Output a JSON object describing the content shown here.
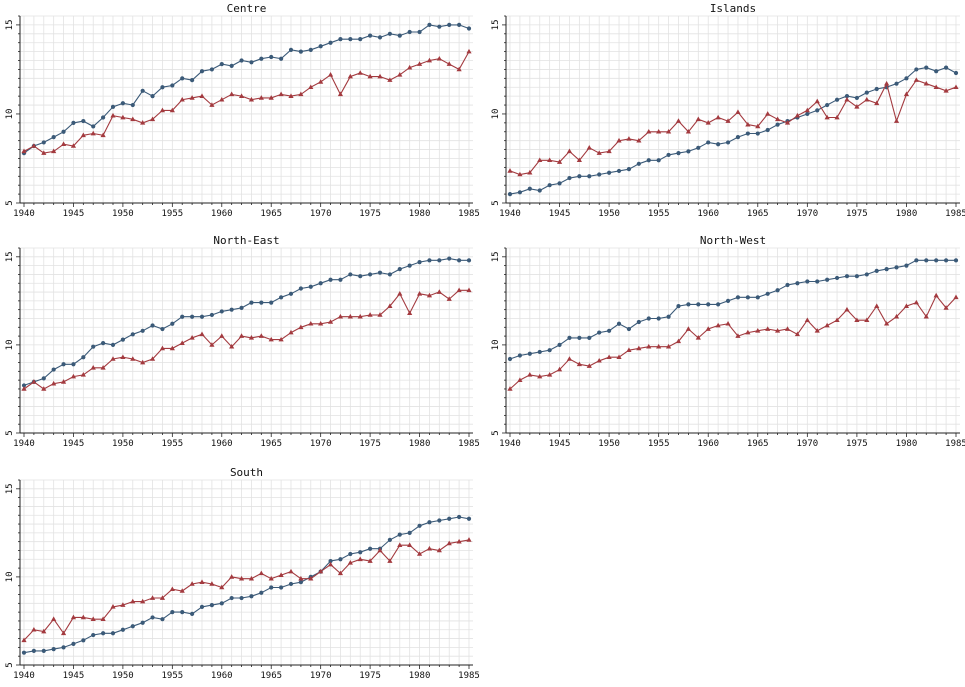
{
  "chart_data": [
    {
      "type": "line",
      "title": "Centre",
      "x": [
        1940,
        1941,
        1942,
        1943,
        1944,
        1945,
        1946,
        1947,
        1948,
        1949,
        1950,
        1951,
        1952,
        1953,
        1954,
        1955,
        1956,
        1957,
        1958,
        1959,
        1960,
        1961,
        1962,
        1963,
        1964,
        1965,
        1966,
        1967,
        1968,
        1969,
        1970,
        1971,
        1972,
        1973,
        1974,
        1975,
        1976,
        1977,
        1978,
        1979,
        1980,
        1981,
        1982,
        1983,
        1984,
        1985
      ],
      "series": [
        {
          "color": "#3b5a78",
          "marker": "circle",
          "values": [
            7.8,
            8.2,
            8.4,
            8.7,
            9.0,
            9.5,
            9.6,
            9.3,
            9.8,
            10.4,
            10.6,
            10.5,
            11.3,
            11.0,
            11.5,
            11.6,
            12.0,
            11.9,
            12.4,
            12.5,
            12.8,
            12.7,
            13.0,
            12.9,
            13.1,
            13.2,
            13.1,
            13.6,
            13.5,
            13.6,
            13.8,
            14.0,
            14.2,
            14.2,
            14.2,
            14.4,
            14.3,
            14.5,
            14.4,
            14.6,
            14.6,
            15.0,
            14.9,
            15.0,
            15.0,
            14.8
          ]
        },
        {
          "color": "#a33a3f",
          "marker": "triangle",
          "values": [
            7.9,
            8.2,
            7.8,
            7.9,
            8.3,
            8.2,
            8.8,
            8.9,
            8.8,
            9.9,
            9.8,
            9.7,
            9.5,
            9.7,
            10.2,
            10.2,
            10.8,
            10.9,
            11.0,
            10.5,
            10.8,
            11.1,
            11.0,
            10.8,
            10.9,
            10.9,
            11.1,
            11.0,
            11.1,
            11.5,
            11.8,
            12.2,
            11.1,
            12.1,
            12.3,
            12.1,
            12.1,
            11.9,
            12.2,
            12.6,
            12.8,
            13.0,
            13.1,
            12.8,
            12.5,
            13.5
          ]
        }
      ],
      "xticks": [
        1940,
        1945,
        1950,
        1955,
        1960,
        1965,
        1970,
        1975,
        1980,
        1985
      ],
      "yticks": [
        5,
        10,
        15
      ],
      "xlim": [
        1940,
        1985
      ],
      "ylim": [
        5,
        15.5
      ],
      "grid": true
    },
    {
      "type": "line",
      "title": "Islands",
      "x": [
        1940,
        1941,
        1942,
        1943,
        1944,
        1945,
        1946,
        1947,
        1948,
        1949,
        1950,
        1951,
        1952,
        1953,
        1954,
        1955,
        1956,
        1957,
        1958,
        1959,
        1960,
        1961,
        1962,
        1963,
        1964,
        1965,
        1966,
        1967,
        1968,
        1969,
        1970,
        1971,
        1972,
        1973,
        1974,
        1975,
        1976,
        1977,
        1978,
        1979,
        1980,
        1981,
        1982,
        1983,
        1984,
        1985
      ],
      "series": [
        {
          "color": "#3b5a78",
          "marker": "circle",
          "values": [
            5.5,
            5.6,
            5.8,
            5.7,
            6.0,
            6.1,
            6.4,
            6.5,
            6.5,
            6.6,
            6.7,
            6.8,
            6.9,
            7.2,
            7.4,
            7.4,
            7.7,
            7.8,
            7.9,
            8.1,
            8.4,
            8.3,
            8.4,
            8.7,
            8.9,
            8.9,
            9.1,
            9.4,
            9.6,
            9.8,
            10.0,
            10.2,
            10.5,
            10.8,
            11.0,
            10.9,
            11.2,
            11.4,
            11.5,
            11.7,
            12.0,
            12.5,
            12.6,
            12.4,
            12.6,
            12.3
          ]
        },
        {
          "color": "#a33a3f",
          "marker": "triangle",
          "values": [
            6.8,
            6.6,
            6.7,
            7.4,
            7.4,
            7.3,
            7.9,
            7.4,
            8.1,
            7.8,
            7.9,
            8.5,
            8.6,
            8.5,
            9.0,
            9.0,
            9.0,
            9.6,
            9.0,
            9.7,
            9.5,
            9.8,
            9.6,
            10.1,
            9.4,
            9.3,
            10.0,
            9.7,
            9.5,
            9.9,
            10.2,
            10.7,
            9.8,
            9.8,
            10.8,
            10.4,
            10.8,
            10.6,
            11.7,
            9.6,
            11.1,
            11.9,
            11.7,
            11.5,
            11.3,
            11.5
          ]
        }
      ],
      "xticks": [
        1940,
        1945,
        1950,
        1955,
        1960,
        1965,
        1970,
        1975,
        1980,
        1985
      ],
      "yticks": [
        5,
        10,
        15
      ],
      "xlim": [
        1940,
        1985
      ],
      "ylim": [
        5,
        15.5
      ],
      "grid": true
    },
    {
      "type": "line",
      "title": "North-East",
      "x": [
        1940,
        1941,
        1942,
        1943,
        1944,
        1945,
        1946,
        1947,
        1948,
        1949,
        1950,
        1951,
        1952,
        1953,
        1954,
        1955,
        1956,
        1957,
        1958,
        1959,
        1960,
        1961,
        1962,
        1963,
        1964,
        1965,
        1966,
        1967,
        1968,
        1969,
        1970,
        1971,
        1972,
        1973,
        1974,
        1975,
        1976,
        1977,
        1978,
        1979,
        1980,
        1981,
        1982,
        1983,
        1984,
        1985
      ],
      "series": [
        {
          "color": "#3b5a78",
          "marker": "circle",
          "values": [
            7.7,
            7.9,
            8.1,
            8.6,
            8.9,
            8.9,
            9.3,
            9.9,
            10.1,
            10.0,
            10.3,
            10.6,
            10.8,
            11.1,
            10.9,
            11.2,
            11.6,
            11.6,
            11.6,
            11.7,
            11.9,
            12.0,
            12.1,
            12.4,
            12.4,
            12.4,
            12.7,
            12.9,
            13.2,
            13.3,
            13.5,
            13.7,
            13.7,
            14.0,
            13.9,
            14.0,
            14.1,
            14.0,
            14.3,
            14.5,
            14.7,
            14.8,
            14.8,
            14.9,
            14.8,
            14.8
          ]
        },
        {
          "color": "#a33a3f",
          "marker": "triangle",
          "values": [
            7.5,
            7.9,
            7.5,
            7.8,
            7.9,
            8.2,
            8.3,
            8.7,
            8.7,
            9.2,
            9.3,
            9.2,
            9.0,
            9.2,
            9.8,
            9.8,
            10.1,
            10.4,
            10.6,
            10.0,
            10.5,
            9.9,
            10.5,
            10.4,
            10.5,
            10.3,
            10.3,
            10.7,
            11.0,
            11.2,
            11.2,
            11.3,
            11.6,
            11.6,
            11.6,
            11.7,
            11.7,
            12.2,
            12.9,
            11.8,
            12.9,
            12.8,
            13.0,
            12.6,
            13.1,
            13.1
          ]
        }
      ],
      "xticks": [
        1940,
        1945,
        1950,
        1955,
        1960,
        1965,
        1970,
        1975,
        1980,
        1985
      ],
      "yticks": [
        5,
        10,
        15
      ],
      "xlim": [
        1940,
        1985
      ],
      "ylim": [
        5,
        15.5
      ],
      "grid": true
    },
    {
      "type": "line",
      "title": "North-West",
      "x": [
        1940,
        1941,
        1942,
        1943,
        1944,
        1945,
        1946,
        1947,
        1948,
        1949,
        1950,
        1951,
        1952,
        1953,
        1954,
        1955,
        1956,
        1957,
        1958,
        1959,
        1960,
        1961,
        1962,
        1963,
        1964,
        1965,
        1966,
        1967,
        1968,
        1969,
        1970,
        1971,
        1972,
        1973,
        1974,
        1975,
        1976,
        1977,
        1978,
        1979,
        1980,
        1981,
        1982,
        1983,
        1984,
        1985
      ],
      "series": [
        {
          "color": "#3b5a78",
          "marker": "circle",
          "values": [
            9.2,
            9.4,
            9.5,
            9.6,
            9.7,
            10.0,
            10.4,
            10.4,
            10.4,
            10.7,
            10.8,
            11.2,
            10.9,
            11.3,
            11.5,
            11.5,
            11.6,
            12.2,
            12.3,
            12.3,
            12.3,
            12.3,
            12.5,
            12.7,
            12.7,
            12.7,
            12.9,
            13.1,
            13.4,
            13.5,
            13.6,
            13.6,
            13.7,
            13.8,
            13.9,
            13.9,
            14.0,
            14.2,
            14.3,
            14.4,
            14.5,
            14.8,
            14.8,
            14.8,
            14.8,
            14.8
          ]
        },
        {
          "color": "#a33a3f",
          "marker": "triangle",
          "values": [
            7.5,
            8.0,
            8.3,
            8.2,
            8.3,
            8.6,
            9.2,
            8.9,
            8.8,
            9.1,
            9.3,
            9.3,
            9.7,
            9.8,
            9.9,
            9.9,
            9.9,
            10.2,
            10.9,
            10.4,
            10.9,
            11.1,
            11.2,
            10.5,
            10.7,
            10.8,
            10.9,
            10.8,
            10.9,
            10.6,
            11.4,
            10.8,
            11.1,
            11.4,
            12.0,
            11.4,
            11.4,
            12.2,
            11.2,
            11.6,
            12.2,
            12.4,
            11.6,
            12.8,
            12.1,
            12.7
          ]
        }
      ],
      "xticks": [
        1940,
        1945,
        1950,
        1955,
        1960,
        1965,
        1970,
        1975,
        1980,
        1985
      ],
      "yticks": [
        5,
        10,
        15
      ],
      "xlim": [
        1940,
        1985
      ],
      "ylim": [
        5,
        15.5
      ],
      "grid": true
    },
    {
      "type": "line",
      "title": "South",
      "x": [
        1940,
        1941,
        1942,
        1943,
        1944,
        1945,
        1946,
        1947,
        1948,
        1949,
        1950,
        1951,
        1952,
        1953,
        1954,
        1955,
        1956,
        1957,
        1958,
        1959,
        1960,
        1961,
        1962,
        1963,
        1964,
        1965,
        1966,
        1967,
        1968,
        1969,
        1970,
        1971,
        1972,
        1973,
        1974,
        1975,
        1976,
        1977,
        1978,
        1979,
        1980,
        1981,
        1982,
        1983,
        1984,
        1985
      ],
      "series": [
        {
          "color": "#3b5a78",
          "marker": "circle",
          "values": [
            5.7,
            5.8,
            5.8,
            5.9,
            6.0,
            6.2,
            6.4,
            6.7,
            6.8,
            6.8,
            7.0,
            7.2,
            7.4,
            7.7,
            7.6,
            8.0,
            8.0,
            7.9,
            8.3,
            8.4,
            8.5,
            8.8,
            8.8,
            8.9,
            9.1,
            9.4,
            9.4,
            9.6,
            9.7,
            10.0,
            10.3,
            10.9,
            11.0,
            11.3,
            11.4,
            11.6,
            11.6,
            12.1,
            12.4,
            12.5,
            12.9,
            13.1,
            13.2,
            13.3,
            13.4,
            13.3
          ]
        },
        {
          "color": "#a33a3f",
          "marker": "triangle",
          "values": [
            6.4,
            7.0,
            6.9,
            7.6,
            6.8,
            7.7,
            7.7,
            7.6,
            7.6,
            8.3,
            8.4,
            8.6,
            8.6,
            8.8,
            8.8,
            9.3,
            9.2,
            9.6,
            9.7,
            9.6,
            9.4,
            10.0,
            9.9,
            9.9,
            10.2,
            9.9,
            10.1,
            10.3,
            9.9,
            9.9,
            10.3,
            10.7,
            10.2,
            10.8,
            11.0,
            10.9,
            11.5,
            10.9,
            11.8,
            11.8,
            11.3,
            11.6,
            11.5,
            11.9,
            12.0,
            12.1
          ]
        }
      ],
      "xticks": [
        1940,
        1945,
        1950,
        1955,
        1960,
        1965,
        1970,
        1975,
        1980,
        1985
      ],
      "yticks": [
        5,
        10,
        15
      ],
      "xlim": [
        1940,
        1985
      ],
      "ylim": [
        5,
        15.5
      ],
      "grid": true
    }
  ]
}
